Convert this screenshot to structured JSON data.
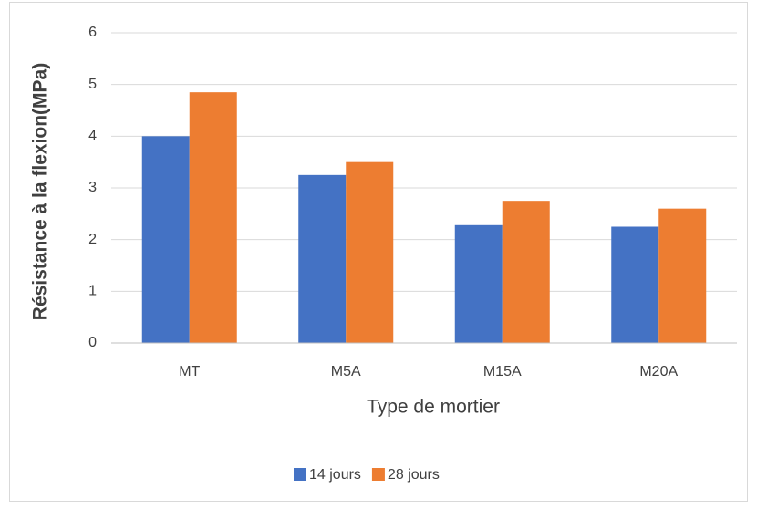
{
  "chart_data": {
    "type": "bar",
    "x_label": "Type de mortier",
    "y_label": "Résistance à la flexion(MPa)",
    "categories": [
      "MT",
      "M5A",
      "M15A",
      "M20A"
    ],
    "series": [
      {
        "name": "14 jours",
        "color": "#4472c4",
        "values": [
          4.0,
          3.25,
          2.28,
          2.25
        ]
      },
      {
        "name": "28 jours",
        "color": "#ed7d31",
        "values": [
          4.85,
          3.5,
          2.75,
          2.6
        ]
      }
    ],
    "ylim": [
      0,
      6
    ],
    "yticks": [
      0,
      1,
      2,
      3,
      4,
      5,
      6
    ],
    "grid": true,
    "legend": "bottom"
  }
}
